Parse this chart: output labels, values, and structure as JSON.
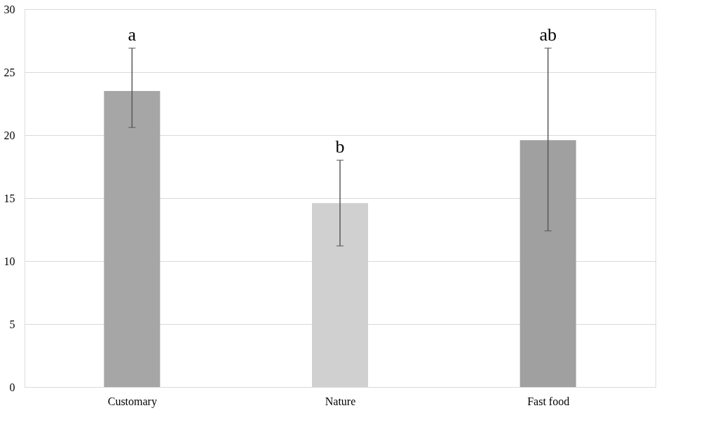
{
  "chart_data": {
    "type": "bar",
    "categories": [
      "Customary",
      "Nature",
      "Fast food"
    ],
    "values": [
      23.5,
      14.6,
      19.6
    ],
    "errors": [
      [
        20.6,
        26.9
      ],
      [
        11.2,
        18.0
      ],
      [
        12.4,
        26.9
      ]
    ],
    "colors": [
      "#a6a6a6",
      "#d0d0d0",
      "#a0a0a0"
    ],
    "ylim": [
      0,
      30
    ],
    "yticks": [
      0,
      5,
      10,
      15,
      20,
      25,
      30
    ],
    "grid": "y",
    "annotations": [
      {
        "text": "a",
        "x": "Customary",
        "y": 26.9
      },
      {
        "text": "b",
        "x": "Nature",
        "y": 18.0
      },
      {
        "text": "ab",
        "x": "Fast food",
        "y": 26.9
      }
    ]
  }
}
